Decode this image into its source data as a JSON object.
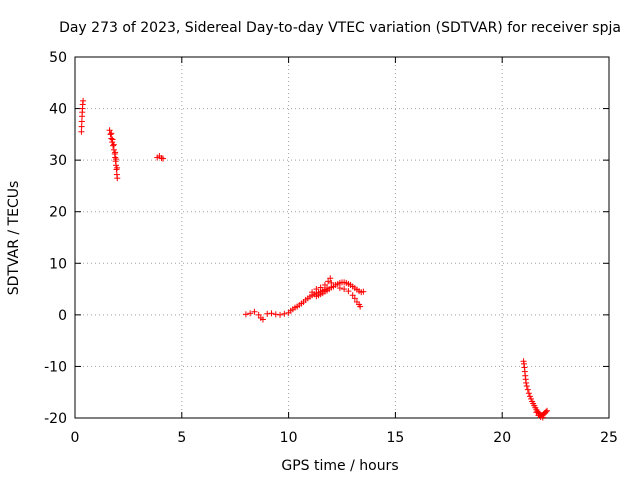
{
  "chart_data": {
    "type": "scatter",
    "title": "Day 273 of 2023, Sidereal Day-to-day VTEC variation (SDTVAR) for receiver spja",
    "xlabel": "GPS time / hours",
    "ylabel": "SDTVAR / TECUs",
    "xlim": [
      0,
      25
    ],
    "ylim": [
      -20,
      50
    ],
    "xticks": [
      0,
      5,
      10,
      15,
      20,
      25
    ],
    "yticks": [
      -20,
      -10,
      0,
      10,
      20,
      30,
      40,
      50
    ],
    "xtick_labels": [
      "0",
      "5",
      "10",
      "15",
      "20",
      "25"
    ],
    "ytick_labels": [
      "-20",
      "-10",
      "0",
      "10",
      "20",
      "30",
      "40",
      "50"
    ],
    "grid": true,
    "marker": "+",
    "series": [
      {
        "name": "SDTVAR",
        "color": "#ff0000",
        "points": [
          [
            0.3,
            35.5
          ],
          [
            0.31,
            36.5
          ],
          [
            0.32,
            37.5
          ],
          [
            0.33,
            38.5
          ],
          [
            0.34,
            39.3
          ],
          [
            0.35,
            40.0
          ],
          [
            0.36,
            40.8
          ],
          [
            0.38,
            41.5
          ],
          [
            1.62,
            35.8
          ],
          [
            1.66,
            35.0
          ],
          [
            1.7,
            34.2
          ],
          [
            1.74,
            33.5
          ],
          [
            1.78,
            32.8
          ],
          [
            1.82,
            32.0
          ],
          [
            1.86,
            31.2
          ],
          [
            1.88,
            30.5
          ],
          [
            1.9,
            29.8
          ],
          [
            1.92,
            29.0
          ],
          [
            1.94,
            28.2
          ],
          [
            1.96,
            27.2
          ],
          [
            1.98,
            26.5
          ],
          [
            1.7,
            35.2
          ],
          [
            1.76,
            34.0
          ],
          [
            1.82,
            33.0
          ],
          [
            1.88,
            31.5
          ],
          [
            1.92,
            30.2
          ],
          [
            1.97,
            28.5
          ],
          [
            3.85,
            30.5
          ],
          [
            3.95,
            30.8
          ],
          [
            4.05,
            30.4
          ],
          [
            4.12,
            30.3
          ],
          [
            8.0,
            0.1
          ],
          [
            8.2,
            0.3
          ],
          [
            8.4,
            0.6
          ],
          [
            8.6,
            0.0
          ],
          [
            8.7,
            -0.6
          ],
          [
            8.8,
            -0.9
          ],
          [
            9.0,
            0.2
          ],
          [
            9.2,
            0.3
          ],
          [
            9.4,
            0.1
          ],
          [
            9.6,
            0.0
          ],
          [
            9.8,
            0.2
          ],
          [
            10.0,
            0.4
          ],
          [
            10.1,
            0.8
          ],
          [
            10.2,
            1.1
          ],
          [
            10.3,
            1.4
          ],
          [
            10.4,
            1.6
          ],
          [
            10.5,
            1.9
          ],
          [
            10.6,
            2.2
          ],
          [
            10.7,
            2.5
          ],
          [
            10.8,
            2.9
          ],
          [
            10.9,
            3.2
          ],
          [
            11.0,
            3.5
          ],
          [
            11.1,
            3.8
          ],
          [
            11.2,
            4.0
          ],
          [
            11.3,
            4.2
          ],
          [
            11.4,
            4.3
          ],
          [
            11.5,
            4.5
          ],
          [
            11.6,
            4.7
          ],
          [
            11.7,
            4.9
          ],
          [
            11.8,
            5.2
          ],
          [
            11.3,
            3.6
          ],
          [
            11.4,
            3.8
          ],
          [
            11.5,
            4.0
          ],
          [
            11.6,
            4.2
          ],
          [
            11.7,
            4.5
          ],
          [
            11.8,
            4.7
          ],
          [
            11.9,
            5.0
          ],
          [
            12.0,
            5.3
          ],
          [
            11.1,
            4.4
          ],
          [
            11.3,
            5.0
          ],
          [
            11.5,
            5.3
          ],
          [
            11.7,
            5.8
          ],
          [
            11.85,
            6.5
          ],
          [
            11.95,
            7.1
          ],
          [
            12.0,
            6.2
          ],
          [
            12.1,
            5.5
          ],
          [
            12.2,
            5.8
          ],
          [
            12.3,
            6.0
          ],
          [
            12.4,
            6.2
          ],
          [
            12.5,
            6.3
          ],
          [
            12.6,
            6.3
          ],
          [
            12.7,
            6.2
          ],
          [
            12.8,
            6.0
          ],
          [
            12.9,
            5.8
          ],
          [
            13.0,
            5.5
          ],
          [
            13.1,
            5.2
          ],
          [
            13.2,
            4.9
          ],
          [
            13.3,
            4.6
          ],
          [
            13.4,
            4.4
          ],
          [
            12.4,
            5.2
          ],
          [
            12.6,
            5.0
          ],
          [
            12.8,
            4.6
          ],
          [
            13.0,
            3.8
          ],
          [
            13.1,
            3.2
          ],
          [
            13.2,
            2.5
          ],
          [
            13.3,
            2.0
          ],
          [
            13.35,
            1.6
          ],
          [
            13.5,
            4.5
          ],
          [
            21.0,
            -9.0
          ],
          [
            21.02,
            -9.5
          ],
          [
            21.04,
            -10.2
          ],
          [
            21.06,
            -11.0
          ],
          [
            21.08,
            -11.8
          ],
          [
            21.1,
            -12.5
          ],
          [
            21.12,
            -13.2
          ],
          [
            21.15,
            -13.8
          ],
          [
            21.2,
            -14.5
          ],
          [
            21.25,
            -15.2
          ],
          [
            21.3,
            -15.8
          ],
          [
            21.35,
            -16.3
          ],
          [
            21.4,
            -16.8
          ],
          [
            21.45,
            -17.2
          ],
          [
            21.5,
            -17.6
          ],
          [
            21.55,
            -18.0
          ],
          [
            21.6,
            -18.4
          ],
          [
            21.65,
            -18.7
          ],
          [
            21.7,
            -19.0
          ],
          [
            21.75,
            -19.2
          ],
          [
            21.8,
            -19.4
          ],
          [
            21.85,
            -19.5
          ],
          [
            21.9,
            -19.4
          ],
          [
            21.95,
            -19.2
          ],
          [
            22.0,
            -19.0
          ],
          [
            22.05,
            -18.8
          ],
          [
            22.1,
            -18.6
          ],
          [
            21.6,
            -18.9
          ],
          [
            21.7,
            -19.5
          ],
          [
            21.8,
            -19.8
          ],
          [
            21.9,
            -19.9
          ]
        ]
      }
    ]
  }
}
